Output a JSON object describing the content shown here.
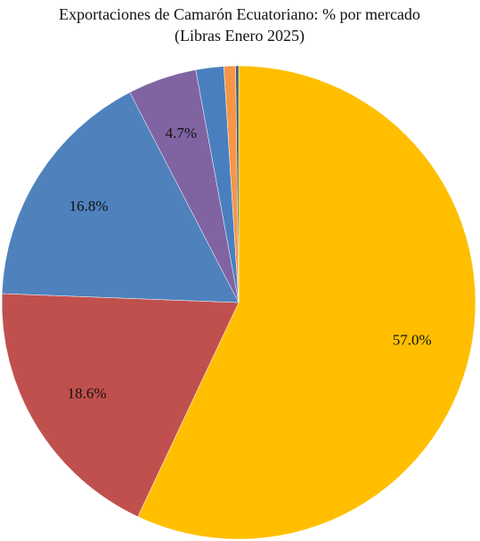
{
  "chart_data": {
    "type": "pie",
    "title": "Exportaciones de Camarón Ecuatoriano: % por mercado",
    "subtitle": "(Libras Enero 2025)",
    "values": [
      57.0,
      18.6,
      16.8,
      4.7,
      1.9,
      0.8,
      0.2
    ],
    "value_labels": [
      "57.0%",
      "18.6%",
      "16.8%",
      "4.7%",
      null,
      null,
      null
    ],
    "colors": [
      "#ffbf00",
      "#c0504d",
      "#4f81bd",
      "#8064a2",
      "#4a7fbf",
      "#f79646",
      "#3b5a78"
    ]
  }
}
